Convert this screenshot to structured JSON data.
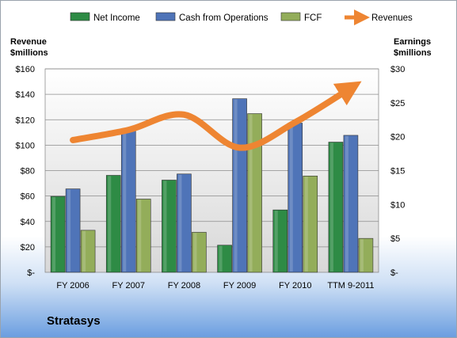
{
  "company": "Stratasys",
  "chart_data": {
    "type": "bar",
    "categories": [
      "FY 2006",
      "FY 2007",
      "FY 2008",
      "FY 2009",
      "FY 2010",
      "TTM 9-2011"
    ],
    "series": [
      {
        "name": "Net Income",
        "axis": "right",
        "color": "#2e8b45",
        "values": [
          11.2,
          14.3,
          13.6,
          4.0,
          9.2,
          19.2
        ]
      },
      {
        "name": "Cash from Operations",
        "axis": "right",
        "color": "#4f74b8",
        "values": [
          12.3,
          20.9,
          14.5,
          25.6,
          22.0,
          20.2
        ]
      },
      {
        "name": "FCF",
        "axis": "right",
        "color": "#93ad5a",
        "values": [
          6.2,
          10.8,
          5.9,
          23.4,
          14.2,
          5.0
        ]
      },
      {
        "name": "Revenues",
        "axis": "left",
        "type": "line",
        "color": "#ee8532",
        "values": [
          104,
          112,
          124,
          98,
          118,
          145
        ]
      }
    ],
    "y_left": {
      "label": [
        "Revenue",
        "$millions"
      ],
      "ylim": [
        0,
        160
      ],
      "ticks": [
        "$-",
        "$20",
        "$40",
        "$60",
        "$80",
        "$100",
        "$120",
        "$140",
        "$160"
      ]
    },
    "y_right": {
      "label": [
        "Earnings",
        "$millions"
      ],
      "ylim": [
        0,
        30
      ],
      "ticks": [
        "$-",
        "$5",
        "$10",
        "$15",
        "$20",
        "$25",
        "$30"
      ]
    },
    "grid": true,
    "legend": "top"
  }
}
